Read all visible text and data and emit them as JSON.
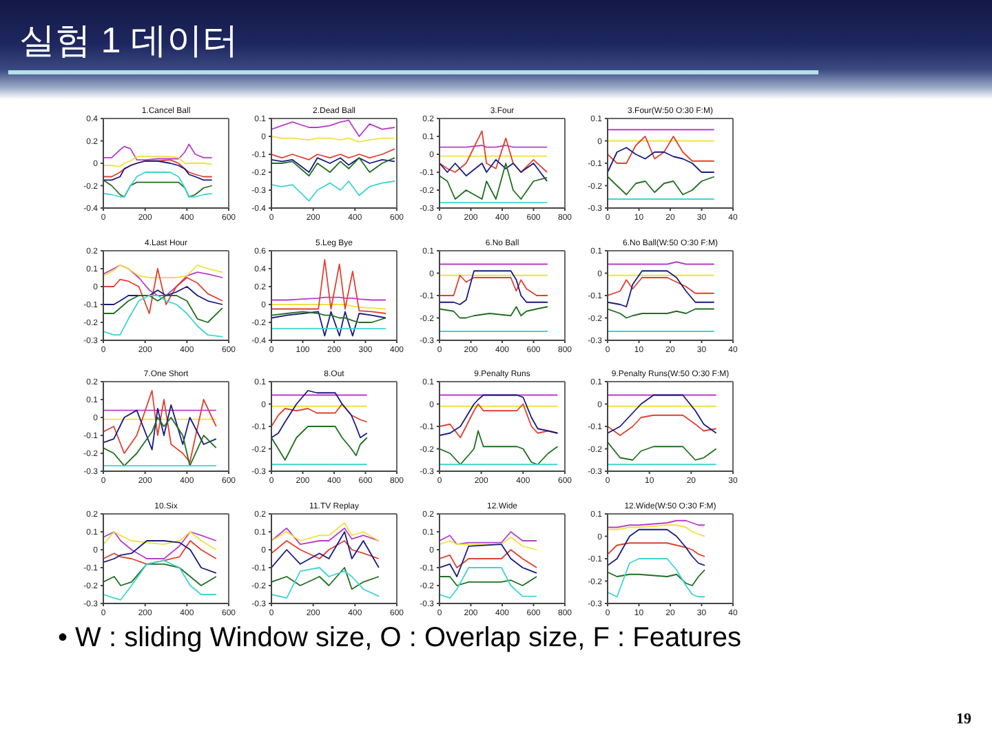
{
  "chart_data": [
    {
      "type": "other",
      "title": "실험 1 데이터",
      "annotations": [
        "• W : sliding Window size, O : Overlap size, F : Features",
        "19"
      ]
    },
    {
      "type": "line",
      "title": "1.Cancel Ball",
      "xlim": [
        0,
        600
      ],
      "xticks": [
        0,
        200,
        400,
        600
      ],
      "ylim": [
        -0.4,
        0.4
      ],
      "yticks": [
        -0.4,
        -0.2,
        0,
        0.2,
        0.4
      ],
      "x": [
        0,
        40,
        80,
        100,
        130,
        160,
        200,
        260,
        320,
        360,
        390,
        410,
        440,
        480,
        520
      ],
      "series": [
        {
          "color": "#b83cc8",
          "values": [
            0.05,
            0.05,
            0.12,
            0.15,
            0.13,
            0.03,
            0.03,
            0.04,
            0.04,
            0.04,
            0.1,
            0.17,
            0.08,
            0.05,
            0.05
          ]
        },
        {
          "color": "#f0e040",
          "values": [
            -0.02,
            -0.02,
            -0.03,
            0,
            0.02,
            0.06,
            0.06,
            0.06,
            0.06,
            0.05,
            0,
            0,
            0,
            0,
            -0.01
          ]
        },
        {
          "color": "#e04030",
          "values": [
            -0.12,
            -0.12,
            -0.08,
            -0.05,
            -0.02,
            0,
            0.02,
            0.02,
            0.03,
            0,
            -0.05,
            -0.08,
            -0.1,
            -0.12,
            -0.12
          ]
        },
        {
          "color": "#1a1a80",
          "values": [
            -0.15,
            -0.15,
            -0.12,
            -0.05,
            -0.02,
            0,
            0.02,
            0.02,
            0,
            -0.02,
            -0.05,
            -0.1,
            -0.12,
            -0.15,
            -0.15
          ]
        },
        {
          "color": "#1f6f1f",
          "values": [
            -0.15,
            -0.2,
            -0.28,
            -0.3,
            -0.2,
            -0.17,
            -0.17,
            -0.17,
            -0.17,
            -0.17,
            -0.22,
            -0.3,
            -0.28,
            -0.22,
            -0.2
          ]
        },
        {
          "color": "#3cd4d4",
          "values": [
            -0.27,
            -0.28,
            -0.3,
            -0.3,
            -0.2,
            -0.12,
            -0.08,
            -0.08,
            -0.08,
            -0.12,
            -0.22,
            -0.3,
            -0.3,
            -0.28,
            -0.27
          ]
        }
      ]
    },
    {
      "type": "line",
      "title": "2.Dead Ball",
      "xlim": [
        0,
        600
      ],
      "xticks": [
        0,
        200,
        400,
        600
      ],
      "ylim": [
        -0.4,
        0.1
      ],
      "yticks": [
        -0.4,
        -0.3,
        -0.2,
        -0.1,
        0,
        0.1
      ],
      "x": [
        0,
        50,
        100,
        180,
        220,
        280,
        330,
        370,
        420,
        470,
        530,
        590
      ],
      "series": [
        {
          "color": "#b83cc8",
          "values": [
            0.04,
            0.06,
            0.08,
            0.05,
            0.05,
            0.06,
            0.08,
            0.09,
            0,
            0.07,
            0.04,
            0.05
          ]
        },
        {
          "color": "#f0e040",
          "values": [
            0,
            -0.01,
            -0.01,
            -0.02,
            -0.01,
            -0.01,
            -0.02,
            -0.01,
            -0.03,
            -0.02,
            -0.01,
            -0.01
          ]
        },
        {
          "color": "#e04030",
          "values": [
            -0.1,
            -0.12,
            -0.1,
            -0.13,
            -0.1,
            -0.12,
            -0.1,
            -0.12,
            -0.1,
            -0.12,
            -0.1,
            -0.07
          ]
        },
        {
          "color": "#1a1a80",
          "values": [
            -0.13,
            -0.14,
            -0.13,
            -0.2,
            -0.12,
            -0.15,
            -0.12,
            -0.16,
            -0.12,
            -0.15,
            -0.13,
            -0.14
          ]
        },
        {
          "color": "#1f6f1f",
          "values": [
            -0.15,
            -0.15,
            -0.14,
            -0.22,
            -0.15,
            -0.2,
            -0.14,
            -0.18,
            -0.12,
            -0.2,
            -0.15,
            -0.12
          ]
        },
        {
          "color": "#3cd4d4",
          "values": [
            -0.27,
            -0.28,
            -0.27,
            -0.36,
            -0.3,
            -0.26,
            -0.3,
            -0.25,
            -0.33,
            -0.28,
            -0.26,
            -0.25
          ]
        }
      ]
    },
    {
      "type": "line",
      "title": "3.Four",
      "xlim": [
        0,
        800
      ],
      "xticks": [
        0,
        200,
        400,
        600,
        800
      ],
      "ylim": [
        -0.3,
        0.2
      ],
      "yticks": [
        -0.3,
        -0.2,
        -0.1,
        0,
        0.1,
        0.2
      ],
      "x": [
        0,
        50,
        100,
        170,
        271,
        300,
        360,
        423,
        470,
        520,
        600,
        686
      ],
      "series": [
        {
          "color": "#b83cc8",
          "values": [
            0.04,
            0.04,
            0.04,
            0.04,
            0.05,
            0.04,
            0.04,
            0.05,
            0.04,
            0.04,
            0.04,
            0.04
          ]
        },
        {
          "color": "#f0e040",
          "values": [
            -0.01,
            -0.01,
            -0.01,
            -0.01,
            -0.01,
            -0.01,
            -0.01,
            -0.01,
            -0.01,
            -0.01,
            -0.01,
            -0.01
          ]
        },
        {
          "color": "#e04030",
          "values": [
            -0.05,
            -0.08,
            -0.1,
            -0.05,
            0.13,
            -0.05,
            -0.08,
            0.09,
            -0.05,
            -0.1,
            -0.03,
            -0.1
          ]
        },
        {
          "color": "#1a1a80",
          "values": [
            -0.05,
            -0.1,
            -0.05,
            -0.12,
            -0.05,
            -0.1,
            -0.03,
            -0.08,
            -0.05,
            -0.1,
            -0.05,
            -0.15
          ]
        },
        {
          "color": "#1f6f1f",
          "values": [
            -0.12,
            -0.15,
            -0.25,
            -0.2,
            -0.25,
            -0.15,
            -0.25,
            -0.05,
            -0.2,
            -0.25,
            -0.15,
            -0.13
          ]
        },
        {
          "color": "#3cd4d4",
          "values": [
            -0.27,
            -0.27,
            -0.27,
            -0.27,
            -0.27,
            -0.27,
            -0.27,
            -0.27,
            -0.27,
            -0.27,
            -0.27,
            -0.27
          ]
        }
      ]
    },
    {
      "type": "line",
      "title": "3.Four(W:50 O:30 F:M)",
      "xlim": [
        0,
        40
      ],
      "xticks": [
        0,
        10,
        20,
        30,
        40
      ],
      "ylim": [
        -0.3,
        0.1
      ],
      "yticks": [
        -0.3,
        -0.2,
        -0.1,
        0,
        0.1
      ],
      "x": [
        0,
        3,
        6,
        9,
        12,
        15,
        18,
        21,
        24,
        27,
        30,
        34
      ],
      "series": [
        {
          "color": "#b83cc8",
          "values": [
            0.05,
            0.05,
            0.05,
            0.05,
            0.05,
            0.05,
            0.05,
            0.05,
            0.05,
            0.05,
            0.05,
            0.05
          ]
        },
        {
          "color": "#f0e040",
          "values": [
            0,
            0,
            0,
            0,
            0,
            0,
            0,
            0,
            0,
            0,
            0,
            0
          ]
        },
        {
          "color": "#e04030",
          "values": [
            -0.06,
            -0.1,
            -0.1,
            -0.02,
            0.02,
            -0.08,
            -0.05,
            0.02,
            -0.05,
            -0.09,
            -0.09,
            -0.09
          ]
        },
        {
          "color": "#1a1a80",
          "values": [
            -0.14,
            -0.05,
            -0.03,
            -0.06,
            -0.08,
            -0.05,
            -0.05,
            -0.07,
            -0.08,
            -0.1,
            -0.14,
            -0.14
          ]
        },
        {
          "color": "#1f6f1f",
          "values": [
            -0.16,
            -0.2,
            -0.24,
            -0.19,
            -0.18,
            -0.23,
            -0.19,
            -0.18,
            -0.24,
            -0.22,
            -0.18,
            -0.16
          ]
        },
        {
          "color": "#3cd4d4",
          "values": [
            -0.26,
            -0.26,
            -0.26,
            -0.26,
            -0.26,
            -0.26,
            -0.26,
            -0.26,
            -0.26,
            -0.26,
            -0.26,
            -0.26
          ]
        }
      ]
    },
    {
      "type": "line",
      "title": "4.Last Hour",
      "xlim": [
        0,
        600
      ],
      "xticks": [
        0,
        200,
        400,
        600
      ],
      "ylim": [
        -0.3,
        0.2
      ],
      "yticks": [
        -0.3,
        -0.2,
        -0.1,
        0,
        0.1,
        0.2
      ],
      "x": [
        0,
        50,
        80,
        120,
        170,
        220,
        260,
        300,
        350,
        400,
        450,
        500,
        570
      ],
      "series": [
        {
          "color": "#b83cc8",
          "values": [
            0.07,
            0.1,
            0.12,
            0.1,
            0.05,
            -0.02,
            -0.05,
            -0.05,
            0,
            0.06,
            0.08,
            0.07,
            0.05
          ]
        },
        {
          "color": "#f0e040",
          "values": [
            0.06,
            0.09,
            0.12,
            0.1,
            0.06,
            0.05,
            0.05,
            0.05,
            0.05,
            0.06,
            0.12,
            0.1,
            0.08
          ]
        },
        {
          "color": "#e04030",
          "values": [
            0,
            0,
            0.04,
            0.03,
            0,
            -0.15,
            0.1,
            -0.1,
            0,
            0.05,
            0.02,
            -0.04,
            -0.08
          ]
        },
        {
          "color": "#1a1a80",
          "values": [
            -0.1,
            -0.1,
            -0.08,
            -0.05,
            -0.05,
            -0.05,
            -0.02,
            -0.05,
            -0.03,
            0,
            -0.05,
            -0.08,
            -0.1
          ]
        },
        {
          "color": "#1f6f1f",
          "values": [
            -0.15,
            -0.15,
            -0.12,
            -0.08,
            -0.05,
            -0.05,
            -0.08,
            -0.05,
            -0.05,
            -0.08,
            -0.18,
            -0.2,
            -0.12
          ]
        },
        {
          "color": "#3cd4d4",
          "values": [
            -0.25,
            -0.27,
            -0.27,
            -0.18,
            -0.08,
            -0.05,
            -0.05,
            -0.08,
            -0.1,
            -0.15,
            -0.22,
            -0.27,
            -0.28
          ]
        }
      ]
    },
    {
      "type": "line",
      "title": "5.Leg Bye",
      "xlim": [
        0,
        400
      ],
      "xticks": [
        0,
        100,
        200,
        300,
        400
      ],
      "ylim": [
        -0.4,
        0.6
      ],
      "yticks": [
        -0.4,
        -0.2,
        0,
        0.2,
        0.4,
        0.6
      ],
      "x": [
        0,
        50,
        100,
        150,
        170,
        190,
        217,
        235,
        259,
        280,
        320,
        365
      ],
      "series": [
        {
          "color": "#b83cc8",
          "values": [
            0.05,
            0.05,
            0.06,
            0.07,
            0.08,
            0.08,
            0.08,
            0.07,
            0.07,
            0.06,
            0.05,
            0.05
          ]
        },
        {
          "color": "#f0e040",
          "values": [
            0,
            0,
            0,
            0,
            0,
            0,
            0,
            0,
            -0.02,
            -0.03,
            -0.04,
            -0.05
          ]
        },
        {
          "color": "#e04030",
          "values": [
            -0.05,
            -0.05,
            -0.05,
            -0.05,
            0.5,
            -0.05,
            0.45,
            -0.05,
            0.37,
            -0.07,
            -0.08,
            -0.1
          ]
        },
        {
          "color": "#1a1a80",
          "values": [
            -0.15,
            -0.12,
            -0.1,
            -0.08,
            -0.35,
            -0.08,
            -0.35,
            -0.08,
            -0.35,
            -0.1,
            -0.12,
            -0.15
          ]
        },
        {
          "color": "#1f6f1f",
          "values": [
            -0.12,
            -0.1,
            -0.08,
            -0.1,
            -0.12,
            -0.12,
            -0.15,
            -0.15,
            -0.18,
            -0.2,
            -0.2,
            -0.15
          ]
        },
        {
          "color": "#3cd4d4",
          "values": [
            -0.27,
            -0.27,
            -0.27,
            -0.27,
            -0.27,
            -0.27,
            -0.27,
            -0.27,
            -0.27,
            -0.27,
            -0.27,
            -0.27
          ]
        }
      ]
    },
    {
      "type": "line",
      "title": "6.No Ball",
      "xlim": [
        0,
        800
      ],
      "xticks": [
        0,
        200,
        400,
        600,
        800
      ],
      "ylim": [
        -0.3,
        0.1
      ],
      "yticks": [
        -0.3,
        -0.2,
        -0.1,
        0,
        0.1
      ],
      "x": [
        0,
        90,
        130,
        170,
        220,
        320,
        455,
        490,
        520,
        555,
        620,
        690
      ],
      "series": [
        {
          "color": "#b83cc8",
          "values": [
            0.04,
            0.04,
            0.04,
            0.04,
            0.04,
            0.04,
            0.04,
            0.04,
            0.04,
            0.04,
            0.04,
            0.04
          ]
        },
        {
          "color": "#f0e040",
          "values": [
            -0.01,
            -0.01,
            -0.01,
            -0.01,
            -0.01,
            -0.01,
            -0.01,
            -0.01,
            -0.01,
            -0.01,
            -0.01,
            -0.01
          ]
        },
        {
          "color": "#e04030",
          "values": [
            -0.1,
            -0.1,
            -0.01,
            -0.04,
            -0.02,
            -0.02,
            -0.02,
            -0.08,
            -0.03,
            -0.07,
            -0.1,
            -0.1
          ]
        },
        {
          "color": "#1a1a80",
          "values": [
            -0.13,
            -0.13,
            -0.14,
            -0.12,
            0.01,
            0.01,
            0.01,
            -0.03,
            -0.1,
            -0.13,
            -0.13,
            -0.13
          ]
        },
        {
          "color": "#1f6f1f",
          "values": [
            -0.16,
            -0.17,
            -0.2,
            -0.2,
            -0.19,
            -0.18,
            -0.19,
            -0.15,
            -0.19,
            -0.17,
            -0.16,
            -0.15
          ]
        },
        {
          "color": "#3cd4d4",
          "values": [
            -0.26,
            -0.26,
            -0.26,
            -0.26,
            -0.26,
            -0.26,
            -0.26,
            -0.26,
            -0.26,
            -0.26,
            -0.26,
            -0.26
          ]
        }
      ]
    },
    {
      "type": "line",
      "title": "6.No Ball(W:50 O:30 F:M)",
      "xlim": [
        0,
        40
      ],
      "xticks": [
        0,
        10,
        20,
        30,
        40
      ],
      "ylim": [
        -0.3,
        0.1
      ],
      "yticks": [
        -0.3,
        -0.2,
        -0.1,
        0,
        0.1
      ],
      "x": [
        0,
        4,
        6,
        8,
        11,
        16,
        19,
        22,
        25,
        28,
        34
      ],
      "series": [
        {
          "color": "#b83cc8",
          "values": [
            0.04,
            0.04,
            0.04,
            0.04,
            0.04,
            0.04,
            0.04,
            0.05,
            0.04,
            0.04,
            0.04
          ]
        },
        {
          "color": "#f0e040",
          "values": [
            -0.01,
            -0.01,
            -0.01,
            -0.01,
            -0.01,
            -0.01,
            -0.01,
            -0.01,
            -0.01,
            -0.01,
            -0.01
          ]
        },
        {
          "color": "#e04030",
          "values": [
            -0.1,
            -0.08,
            -0.03,
            -0.07,
            -0.02,
            -0.02,
            -0.02,
            -0.04,
            -0.06,
            -0.09,
            -0.09
          ]
        },
        {
          "color": "#1a1a80",
          "values": [
            -0.13,
            -0.14,
            -0.15,
            -0.05,
            0.01,
            0.01,
            0.01,
            -0.02,
            -0.08,
            -0.13,
            -0.13
          ]
        },
        {
          "color": "#1f6f1f",
          "values": [
            -0.16,
            -0.18,
            -0.2,
            -0.19,
            -0.18,
            -0.18,
            -0.18,
            -0.17,
            -0.18,
            -0.16,
            -0.16
          ]
        },
        {
          "color": "#3cd4d4",
          "values": [
            -0.26,
            -0.26,
            -0.26,
            -0.26,
            -0.26,
            -0.26,
            -0.26,
            -0.26,
            -0.26,
            -0.26,
            -0.26
          ]
        }
      ]
    },
    {
      "type": "line",
      "title": "7.One Short",
      "xlim": [
        0,
        600
      ],
      "xticks": [
        0,
        200,
        400,
        600
      ],
      "ylim": [
        -0.3,
        0.2
      ],
      "yticks": [
        -0.3,
        -0.2,
        -0.1,
        0,
        0.1,
        0.2
      ],
      "x": [
        0,
        50,
        100,
        160,
        233,
        260,
        290,
        324,
        380,
        414,
        480,
        540
      ],
      "series": [
        {
          "color": "#b83cc8",
          "values": [
            0.04,
            0.04,
            0.04,
            0.04,
            0.04,
            0.04,
            0.04,
            0.04,
            0.04,
            0.04,
            0.04,
            0.04
          ]
        },
        {
          "color": "#f0e040",
          "values": [
            -0.01,
            -0.01,
            -0.01,
            -0.01,
            -0.01,
            -0.01,
            -0.01,
            -0.01,
            -0.01,
            -0.01,
            -0.01,
            -0.01
          ]
        },
        {
          "color": "#e04030",
          "values": [
            -0.08,
            -0.05,
            -0.2,
            -0.1,
            0.15,
            -0.1,
            0.1,
            -0.15,
            -0.2,
            -0.25,
            0.1,
            -0.05
          ]
        },
        {
          "color": "#1a1a80",
          "values": [
            -0.14,
            -0.12,
            0,
            0.04,
            -0.18,
            0.05,
            -0.1,
            0.07,
            -0.15,
            0,
            -0.15,
            -0.12
          ]
        },
        {
          "color": "#1f6f1f",
          "values": [
            -0.17,
            -0.2,
            -0.27,
            -0.2,
            -0.08,
            0,
            -0.05,
            0,
            -0.1,
            -0.27,
            -0.1,
            -0.17
          ]
        },
        {
          "color": "#3cd4d4",
          "values": [
            -0.27,
            -0.27,
            -0.27,
            -0.27,
            -0.27,
            -0.27,
            -0.27,
            -0.27,
            -0.27,
            -0.27,
            -0.27,
            -0.27
          ]
        }
      ]
    },
    {
      "type": "line",
      "title": "8.Out",
      "xlim": [
        0,
        800
      ],
      "xticks": [
        0,
        200,
        400,
        600,
        800
      ],
      "ylim": [
        -0.3,
        0.1
      ],
      "yticks": [
        -0.3,
        -0.2,
        -0.1,
        0,
        0.1
      ],
      "x": [
        0,
        44,
        87,
        160,
        233,
        290,
        407,
        451,
        510,
        540,
        567,
        610
      ],
      "series": [
        {
          "color": "#b83cc8",
          "values": [
            0.04,
            0.04,
            0.04,
            0.04,
            0.04,
            0.04,
            0.04,
            0.04,
            0.04,
            0.04,
            0.04,
            0.04
          ]
        },
        {
          "color": "#f0e040",
          "values": [
            -0.01,
            -0.01,
            -0.01,
            -0.01,
            -0.01,
            -0.01,
            -0.01,
            -0.01,
            -0.01,
            -0.01,
            -0.01,
            -0.01
          ]
        },
        {
          "color": "#e04030",
          "values": [
            -0.1,
            -0.05,
            -0.02,
            -0.03,
            -0.02,
            -0.04,
            -0.04,
            0,
            -0.05,
            -0.06,
            -0.07,
            -0.08
          ]
        },
        {
          "color": "#1a1a80",
          "values": [
            -0.15,
            -0.13,
            -0.08,
            0,
            0.06,
            0.05,
            0.05,
            0,
            -0.05,
            -0.1,
            -0.15,
            -0.13
          ]
        },
        {
          "color": "#1f6f1f",
          "values": [
            -0.15,
            -0.2,
            -0.25,
            -0.15,
            -0.1,
            -0.1,
            -0.1,
            -0.15,
            -0.2,
            -0.23,
            -0.18,
            -0.15
          ]
        },
        {
          "color": "#3cd4d4",
          "values": [
            -0.27,
            -0.27,
            -0.27,
            -0.27,
            -0.27,
            -0.27,
            -0.27,
            -0.27,
            -0.27,
            -0.27,
            -0.27,
            -0.27
          ]
        }
      ]
    },
    {
      "type": "line",
      "title": "9.Penalty Runs",
      "xlim": [
        0,
        600
      ],
      "xticks": [
        0,
        200,
        400,
        600
      ],
      "ylim": [
        -0.3,
        0.1
      ],
      "yticks": [
        -0.3,
        -0.2,
        -0.1,
        0,
        0.1
      ],
      "x": [
        0,
        50,
        100,
        165,
        185,
        210,
        370,
        400,
        440,
        470,
        520,
        565
      ],
      "series": [
        {
          "color": "#b83cc8",
          "values": [
            0.04,
            0.04,
            0.04,
            0.04,
            0.04,
            0.04,
            0.04,
            0.04,
            0.04,
            0.04,
            0.04,
            0.04
          ]
        },
        {
          "color": "#f0e040",
          "values": [
            -0.01,
            -0.01,
            -0.01,
            -0.01,
            -0.01,
            -0.01,
            -0.01,
            -0.01,
            -0.01,
            -0.01,
            -0.01,
            -0.01
          ]
        },
        {
          "color": "#e04030",
          "values": [
            -0.1,
            -0.09,
            -0.15,
            -0.03,
            0,
            -0.03,
            -0.03,
            0,
            -0.1,
            -0.13,
            -0.12,
            -0.13
          ]
        },
        {
          "color": "#1a1a80",
          "values": [
            -0.14,
            -0.13,
            -0.1,
            0,
            0.02,
            0.04,
            0.04,
            0.03,
            -0.06,
            -0.11,
            -0.12,
            -0.13
          ]
        },
        {
          "color": "#1f6f1f",
          "values": [
            -0.2,
            -0.22,
            -0.27,
            -0.2,
            -0.12,
            -0.19,
            -0.19,
            -0.2,
            -0.26,
            -0.27,
            -0.22,
            -0.19
          ]
        },
        {
          "color": "#3cd4d4",
          "values": [
            -0.27,
            -0.27,
            -0.27,
            -0.27,
            -0.27,
            -0.27,
            -0.27,
            -0.27,
            -0.27,
            -0.27,
            -0.27,
            -0.27
          ]
        }
      ]
    },
    {
      "type": "line",
      "title": "9.Penalty Runs(W:50 O:30 F:M)",
      "xlim": [
        0,
        30
      ],
      "xticks": [
        0,
        10,
        20,
        30
      ],
      "ylim": [
        -0.3,
        0.1
      ],
      "yticks": [
        -0.3,
        -0.2,
        -0.1,
        0,
        0.1
      ],
      "x": [
        0,
        3,
        6,
        8,
        11,
        15,
        18,
        21,
        23,
        26
      ],
      "series": [
        {
          "color": "#b83cc8",
          "values": [
            0.04,
            0.04,
            0.04,
            0.04,
            0.04,
            0.04,
            0.04,
            0.04,
            0.04,
            0.04
          ]
        },
        {
          "color": "#f0e040",
          "values": [
            -0.01,
            -0.01,
            -0.01,
            -0.01,
            -0.01,
            -0.01,
            -0.01,
            -0.01,
            -0.01,
            -0.01
          ]
        },
        {
          "color": "#e04030",
          "values": [
            -0.1,
            -0.14,
            -0.1,
            -0.06,
            -0.05,
            -0.05,
            -0.05,
            -0.09,
            -0.12,
            -0.11
          ]
        },
        {
          "color": "#1a1a80",
          "values": [
            -0.13,
            -0.1,
            -0.04,
            0,
            0.04,
            0.04,
            0.04,
            -0.03,
            -0.09,
            -0.13
          ]
        },
        {
          "color": "#1f6f1f",
          "values": [
            -0.17,
            -0.24,
            -0.25,
            -0.21,
            -0.19,
            -0.19,
            -0.19,
            -0.25,
            -0.24,
            -0.2
          ]
        },
        {
          "color": "#3cd4d4",
          "values": [
            -0.27,
            -0.27,
            -0.27,
            -0.27,
            -0.27,
            -0.27,
            -0.27,
            -0.27,
            -0.27,
            -0.27
          ]
        }
      ]
    },
    {
      "type": "line",
      "title": "10.Six",
      "xlim": [
        0,
        600
      ],
      "xticks": [
        0,
        200,
        400,
        600
      ],
      "ylim": [
        -0.3,
        0.2
      ],
      "yticks": [
        -0.3,
        -0.2,
        -0.1,
        0,
        0.1,
        0.2
      ],
      "x": [
        0,
        52,
        83,
        135,
        208,
        290,
        364,
        416,
        468,
        540
      ],
      "series": [
        {
          "color": "#b83cc8",
          "values": [
            0.07,
            0.1,
            0.05,
            0,
            -0.05,
            -0.05,
            0.02,
            0.1,
            0.08,
            0.05
          ]
        },
        {
          "color": "#f0e040",
          "values": [
            0.03,
            0.1,
            0.08,
            0.05,
            0.04,
            0.03,
            0.05,
            0.1,
            0.05,
            0
          ]
        },
        {
          "color": "#e04030",
          "values": [
            -0.05,
            -0.02,
            -0.04,
            -0.05,
            -0.08,
            -0.06,
            -0.04,
            0.05,
            0,
            -0.05
          ]
        },
        {
          "color": "#1a1a80",
          "values": [
            -0.07,
            -0.05,
            -0.03,
            -0.02,
            0.05,
            0.05,
            0.04,
            0,
            -0.1,
            -0.13
          ]
        },
        {
          "color": "#1f6f1f",
          "values": [
            -0.18,
            -0.15,
            -0.2,
            -0.18,
            -0.08,
            -0.08,
            -0.1,
            -0.15,
            -0.2,
            -0.15
          ]
        },
        {
          "color": "#3cd4d4",
          "values": [
            -0.25,
            -0.27,
            -0.28,
            -0.2,
            -0.08,
            -0.06,
            -0.1,
            -0.2,
            -0.25,
            -0.25
          ]
        }
      ]
    },
    {
      "type": "line",
      "title": "11.TV Replay",
      "xlim": [
        0,
        600
      ],
      "xticks": [
        0,
        200,
        400,
        600
      ],
      "ylim": [
        -0.3,
        0.2
      ],
      "yticks": [
        -0.3,
        -0.2,
        -0.1,
        0,
        0.1,
        0.2
      ],
      "x": [
        0,
        73,
        138,
        230,
        275,
        350,
        385,
        440,
        514
      ],
      "series": [
        {
          "color": "#b83cc8",
          "values": [
            0.05,
            0.12,
            0.03,
            0.05,
            0.05,
            0.12,
            0.06,
            0.08,
            0.05
          ]
        },
        {
          "color": "#f0e040",
          "values": [
            0.05,
            0.1,
            0.05,
            0.08,
            0.08,
            0.15,
            0.08,
            0.1,
            0.05
          ]
        },
        {
          "color": "#e04030",
          "values": [
            -0.02,
            0.05,
            0,
            -0.05,
            0,
            0.05,
            0,
            -0.02,
            -0.05
          ]
        },
        {
          "color": "#1a1a80",
          "values": [
            -0.1,
            0,
            -0.08,
            -0.02,
            -0.05,
            0.1,
            -0.05,
            0.05,
            -0.1
          ]
        },
        {
          "color": "#1f6f1f",
          "values": [
            -0.18,
            -0.15,
            -0.2,
            -0.15,
            -0.2,
            -0.1,
            -0.22,
            -0.18,
            -0.15
          ]
        },
        {
          "color": "#3cd4d4",
          "values": [
            -0.25,
            -0.27,
            -0.12,
            -0.1,
            -0.15,
            -0.12,
            -0.15,
            -0.22,
            -0.26
          ]
        }
      ]
    },
    {
      "type": "line",
      "title": "12.Wide",
      "xlim": [
        0,
        800
      ],
      "xticks": [
        0,
        200,
        400,
        600,
        800
      ],
      "ylim": [
        -0.3,
        0.2
      ],
      "yticks": [
        -0.3,
        -0.2,
        -0.1,
        0,
        0.1,
        0.2
      ],
      "x": [
        0,
        66,
        111,
        186,
        395,
        455,
        530,
        620
      ],
      "series": [
        {
          "color": "#b83cc8",
          "values": [
            0.05,
            0.08,
            0.03,
            0.04,
            0.04,
            0.1,
            0.05,
            0.05
          ]
        },
        {
          "color": "#f0e040",
          "values": [
            0.03,
            0.05,
            0.03,
            0.03,
            0.03,
            0.07,
            0.02,
            0
          ]
        },
        {
          "color": "#e04030",
          "values": [
            -0.05,
            -0.03,
            -0.1,
            -0.05,
            -0.05,
            0,
            -0.05,
            -0.1
          ]
        },
        {
          "color": "#1a1a80",
          "values": [
            -0.1,
            -0.08,
            -0.15,
            0.02,
            0.03,
            -0.05,
            -0.1,
            -0.13
          ]
        },
        {
          "color": "#1f6f1f",
          "values": [
            -0.15,
            -0.15,
            -0.2,
            -0.18,
            -0.18,
            -0.17,
            -0.2,
            -0.15
          ]
        },
        {
          "color": "#3cd4d4",
          "values": [
            -0.25,
            -0.27,
            -0.22,
            -0.1,
            -0.1,
            -0.2,
            -0.26,
            -0.26
          ]
        }
      ]
    },
    {
      "type": "line",
      "title": "12.Wide(W:50 O:30 F:M)",
      "xlim": [
        0,
        40
      ],
      "xticks": [
        0,
        10,
        20,
        30,
        40
      ],
      "ylim": [
        -0.3,
        0.1
      ],
      "yticks": [
        -0.3,
        -0.2,
        -0.1,
        0,
        0.1
      ],
      "x": [
        0,
        3,
        7,
        10,
        19,
        22,
        25,
        27,
        29,
        31
      ],
      "series": [
        {
          "color": "#b83cc8",
          "values": [
            0.04,
            0.04,
            0.05,
            0.05,
            0.06,
            0.07,
            0.07,
            0.06,
            0.05,
            0.05
          ]
        },
        {
          "color": "#f0e040",
          "values": [
            0.03,
            0.03,
            0.04,
            0.04,
            0.05,
            0.05,
            0.04,
            0.02,
            0.01,
            0
          ]
        },
        {
          "color": "#e04030",
          "values": [
            -0.08,
            -0.04,
            -0.03,
            -0.03,
            -0.03,
            -0.04,
            -0.05,
            -0.06,
            -0.08,
            -0.09
          ]
        },
        {
          "color": "#1a1a80",
          "values": [
            -0.13,
            -0.1,
            0,
            0.03,
            0.03,
            0,
            -0.05,
            -0.09,
            -0.12,
            -0.13
          ]
        },
        {
          "color": "#1f6f1f",
          "values": [
            -0.16,
            -0.18,
            -0.17,
            -0.17,
            -0.18,
            -0.17,
            -0.21,
            -0.22,
            -0.18,
            -0.15
          ]
        },
        {
          "color": "#3cd4d4",
          "values": [
            -0.25,
            -0.27,
            -0.12,
            -0.1,
            -0.1,
            -0.15,
            -0.22,
            -0.26,
            -0.27,
            -0.27
          ]
        }
      ]
    }
  ]
}
